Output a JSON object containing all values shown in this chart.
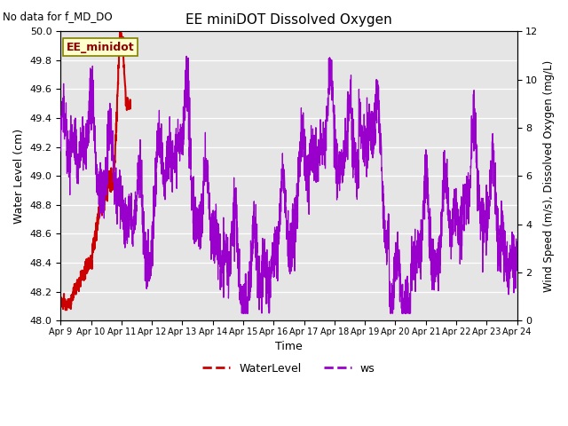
{
  "title": "EE miniDOT Dissolved Oxygen",
  "xlabel": "Time",
  "ylabel_left": "Water Level (cm)",
  "ylabel_right": "Wind Speed (m/s), Dissolved Oxygen (mg/L)",
  "ylim_left": [
    48.0,
    50.0
  ],
  "ylim_right": [
    0,
    12
  ],
  "no_data_text": "No data for f_MD_DO",
  "annotation_text": "EE_minidot",
  "legend_labels": [
    "WaterLevel",
    "ws"
  ],
  "legend_colors": [
    "#cc0000",
    "#9900cc"
  ],
  "bg_color": "#e5e5e5",
  "xtick_labels": [
    "Apr 9",
    "Apr 10",
    "Apr 11",
    "Apr 12",
    "Apr 13",
    "Apr 14",
    "Apr 15",
    "Apr 16",
    "Apr 17",
    "Apr 18",
    "Apr 19",
    "Apr 20",
    "Apr 21",
    "Apr 22",
    "Apr 23",
    "Apr 24"
  ],
  "xtick_positions": [
    0,
    1,
    2,
    3,
    4,
    5,
    6,
    7,
    8,
    9,
    10,
    11,
    12,
    13,
    14,
    15
  ]
}
